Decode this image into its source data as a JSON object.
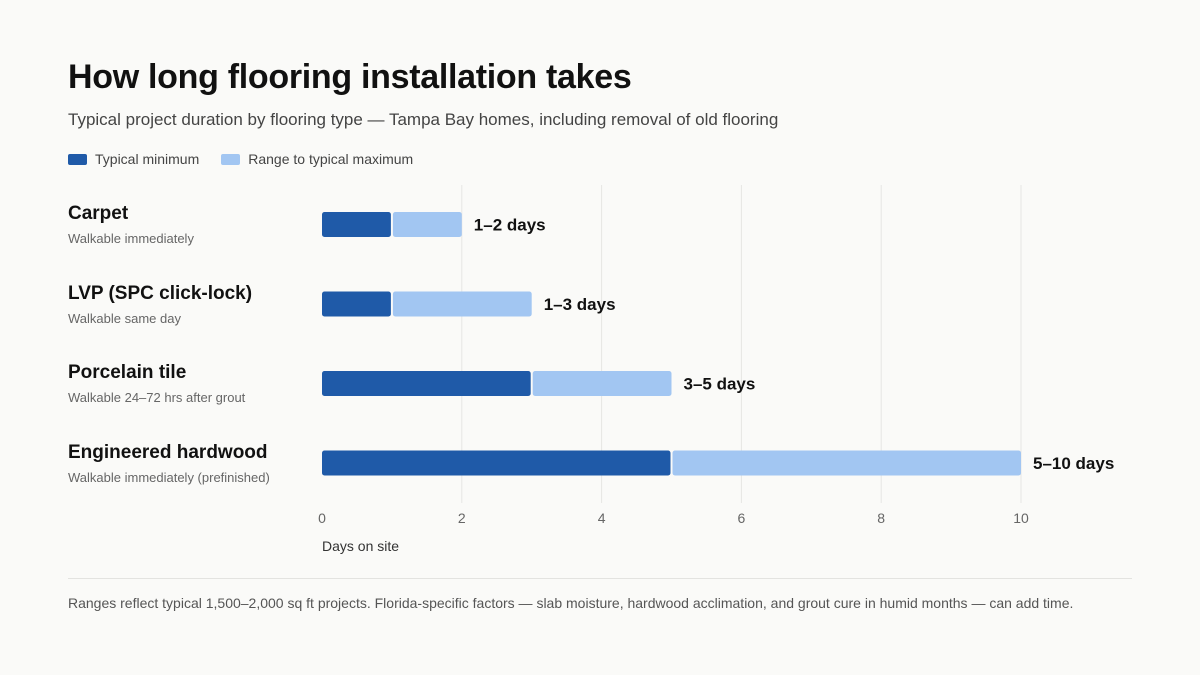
{
  "title": "How long flooring installation takes",
  "subtitle": "Typical project duration by flooring type — Tampa Bay homes, including removal of old flooring",
  "legend": [
    {
      "label": "Typical minimum",
      "color": "#1f5aa8"
    },
    {
      "label": "Range to typical maximum",
      "color": "#a2c6f2"
    }
  ],
  "rows": [
    {
      "name": "Carpet",
      "note": "Walkable immediately"
    },
    {
      "name": "LVP (SPC click-lock)",
      "note": "Walkable same day"
    },
    {
      "name": "Porcelain tile",
      "note": "Walkable 24–72 hrs after grout"
    },
    {
      "name": "Engineered hardwood",
      "note": "Walkable immediately (prefinished)"
    }
  ],
  "chart_data": {
    "type": "bar",
    "orientation": "horizontal",
    "stacked": true,
    "categories": [
      "Carpet",
      "LVP (SPC click-lock)",
      "Porcelain tile",
      "Engineered hardwood"
    ],
    "series": [
      {
        "name": "Typical minimum",
        "values": [
          1,
          1,
          3,
          5
        ],
        "color": "#1f5aa8"
      },
      {
        "name": "Range to typical maximum",
        "values": [
          1,
          2,
          2,
          5
        ],
        "color": "#a2c6f2"
      }
    ],
    "data_labels": [
      "1–2 days",
      "1–3 days",
      "3–5 days",
      "5–10 days"
    ],
    "xlabel": "Days on site",
    "xlim": [
      0,
      10
    ],
    "xticks": [
      0,
      2,
      4,
      6,
      8,
      10
    ],
    "grid": true
  },
  "footnote": "Ranges reflect typical 1,500–2,000 sq ft projects. Florida-specific factors — slab moisture, hardwood acclimation, and grout cure in humid months — can add time."
}
